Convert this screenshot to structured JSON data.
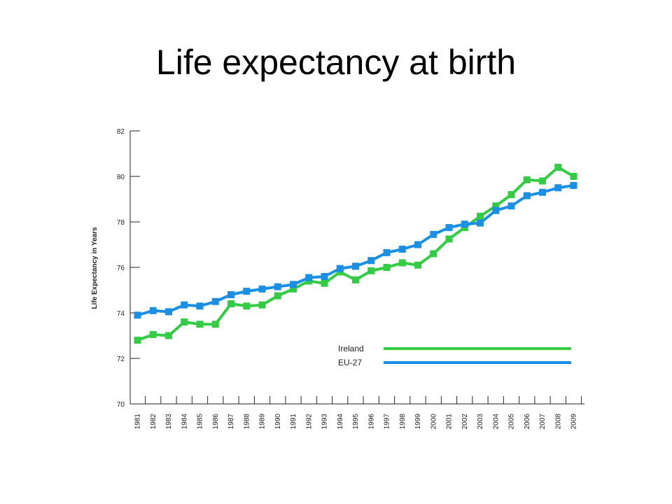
{
  "title": "Life expectancy at birth",
  "chart_data": {
    "type": "line",
    "ylabel": "Life Expectancy in Years",
    "xlabel": "",
    "ylim": [
      70,
      82
    ],
    "yticks": [
      70,
      72,
      74,
      76,
      78,
      80,
      82
    ],
    "grid": false,
    "legend_position": "bottom-right",
    "categories": [
      "1981",
      "1982",
      "1983",
      "1984",
      "1985",
      "1986",
      "1987",
      "1988",
      "1989",
      "1990",
      "1991",
      "1992",
      "1993",
      "1994",
      "1995",
      "1996",
      "1997",
      "1998",
      "1999",
      "2000",
      "2001",
      "2002",
      "2003",
      "2004",
      "2005",
      "2006",
      "2007",
      "2008",
      "2009"
    ],
    "series": [
      {
        "name": "Ireland",
        "color": "#33cc44",
        "values": [
          72.8,
          73.05,
          73.0,
          73.6,
          73.5,
          73.5,
          74.4,
          74.3,
          74.35,
          74.75,
          75.05,
          75.4,
          75.3,
          75.8,
          75.45,
          75.85,
          76.0,
          76.2,
          76.1,
          76.6,
          77.25,
          77.75,
          78.25,
          78.7,
          79.2,
          79.85,
          79.8,
          80.4,
          80.0
        ]
      },
      {
        "name": "EU-27",
        "color": "#1a8fe3",
        "values": [
          73.9,
          74.1,
          74.05,
          74.35,
          74.3,
          74.5,
          74.8,
          74.95,
          75.05,
          75.15,
          75.25,
          75.55,
          75.6,
          75.95,
          76.05,
          76.3,
          76.65,
          76.8,
          77.0,
          77.45,
          77.75,
          77.9,
          77.95,
          78.5,
          78.7,
          79.15,
          79.3,
          79.5,
          79.6
        ]
      }
    ]
  }
}
